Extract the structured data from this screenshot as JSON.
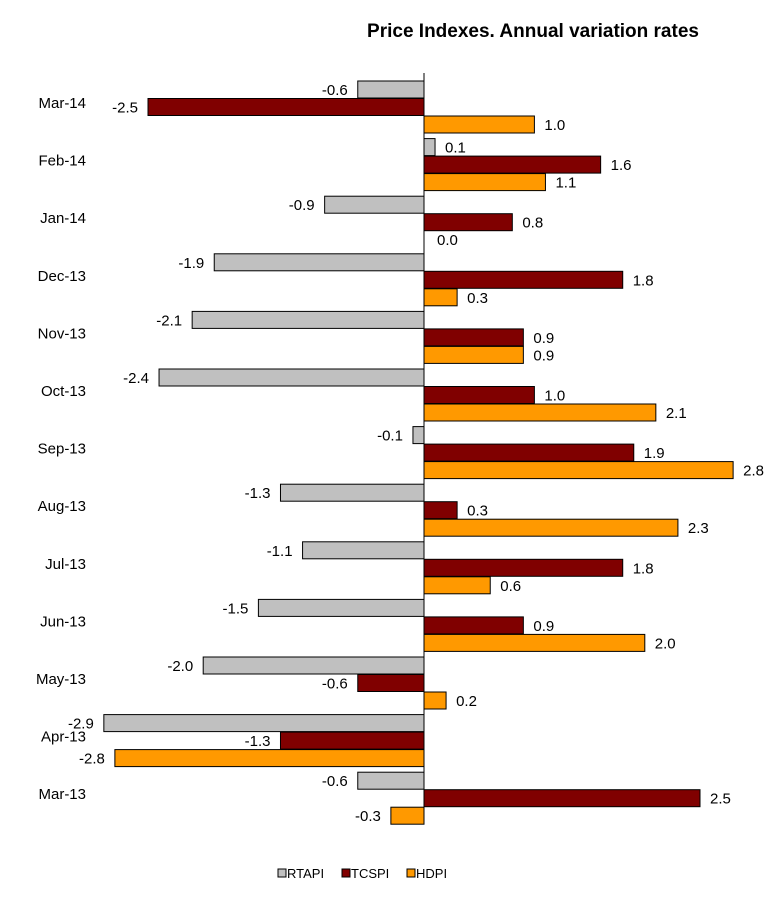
{
  "chart_data": {
    "type": "bar",
    "orientation": "horizontal",
    "title": "Price Indexes. Annual variation rates",
    "categories": [
      "Mar-14",
      "Feb-14",
      "Jan-14",
      "Dec-13",
      "Nov-13",
      "Oct-13",
      "Sep-13",
      "Aug-13",
      "Jul-13",
      "Jun-13",
      "May-13",
      "Apr-13",
      "Mar-13"
    ],
    "series": [
      {
        "name": "RTAPI",
        "color": "#c0c0c0",
        "values": [
          -0.6,
          0.1,
          -0.9,
          -1.9,
          -2.1,
          -2.4,
          -0.1,
          -1.3,
          -1.1,
          -1.5,
          -2.0,
          -2.9,
          -0.6
        ]
      },
      {
        "name": "TCSPI",
        "color": "#800000",
        "values": [
          -2.5,
          1.6,
          0.8,
          1.8,
          0.9,
          1.0,
          1.9,
          0.3,
          1.8,
          0.9,
          -0.6,
          -1.3,
          2.5
        ]
      },
      {
        "name": "HDPI",
        "color": "#ff9900",
        "values": [
          1.0,
          1.1,
          0.0,
          0.3,
          0.9,
          2.1,
          2.8,
          2.3,
          0.6,
          2.0,
          0.2,
          -2.8,
          -0.3
        ]
      }
    ],
    "value_labels": [
      [
        "-0.6",
        "0.1",
        "-0.9",
        "-1.9",
        "-2.1",
        "-2.4",
        "-0.1",
        "-1.3",
        "-1.1",
        "-1.5",
        "-2.0",
        "-2.9",
        "-0.6"
      ],
      [
        "-2.5",
        "1.6",
        "0.8",
        "1.8",
        "0.9",
        "1.0",
        "1.9",
        "0.3",
        "1.8",
        "0.9",
        "-0.6",
        "-1.3",
        "2.5"
      ],
      [
        "1.0",
        "1.1",
        "0.0",
        "0.3",
        "0.9",
        "2.1",
        "2.8",
        "2.3",
        "0.6",
        "2.0",
        "0.2",
        "-2.8",
        "-0.3"
      ]
    ],
    "xlim": [
      -2.9,
      2.8
    ],
    "grid": false,
    "legend_position": "bottom"
  }
}
